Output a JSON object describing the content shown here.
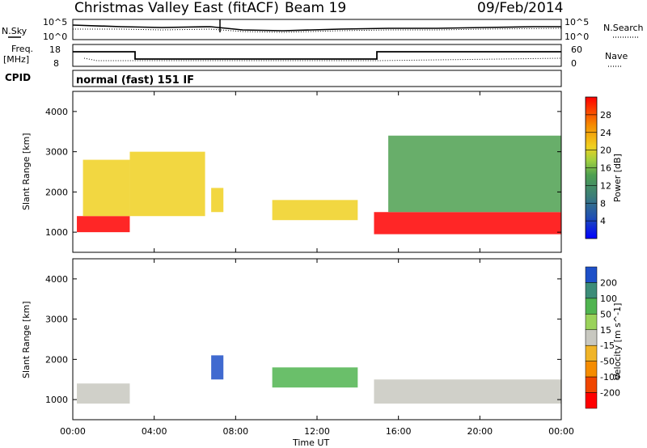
{
  "header": {
    "site": "Christmas Valley East (fitACF)",
    "beam": "Beam 19",
    "date": "09/Feb/2014"
  },
  "params": {
    "nsky_label": "N.Sky",
    "nsearch_label": "N.Search",
    "freq_label_1": "Freq.",
    "freq_label_2": "[MHz]",
    "nave_label": "Nave",
    "cpid_label": "CPID",
    "cpid_value": "normal (fast) 151 IF",
    "noise_ticks": [
      "10^5",
      "10^0"
    ],
    "freq_ticks": [
      "18",
      "8"
    ],
    "nave_ticks": [
      "60",
      "0"
    ]
  },
  "chart_data": [
    {
      "type": "heatmap",
      "title": "",
      "ylabel": "Slant Range [km]",
      "xlabel": "",
      "xlim": [
        "00:00",
        "24:00"
      ],
      "ylim": [
        500,
        4500
      ],
      "yticks": [
        "1000",
        "2000",
        "3000",
        "4000"
      ],
      "colorbar": {
        "label": "Power [dB]",
        "ticks": [
          "4",
          "8",
          "12",
          "16",
          "20",
          "24",
          "28"
        ],
        "colors": [
          "#0000ff",
          "#1e4ec8",
          "#3c7e78",
          "#4ea050",
          "#88c83c",
          "#f0d020",
          "#f5a000",
          "#f06000",
          "#ff0000"
        ]
      },
      "regions": [
        {
          "t": [
            0.2,
            2.8
          ],
          "r": [
            1000,
            1400
          ],
          "level": "high"
        },
        {
          "t": [
            0.5,
            2.8
          ],
          "r": [
            1400,
            2800
          ],
          "level": "mid"
        },
        {
          "t": [
            2.8,
            6.5
          ],
          "r": [
            1400,
            3000
          ],
          "level": "mid"
        },
        {
          "t": [
            6.8,
            7.4
          ],
          "r": [
            1500,
            2100
          ],
          "level": "mid"
        },
        {
          "t": [
            9.8,
            14.0
          ],
          "r": [
            1300,
            1800
          ],
          "level": "mid"
        },
        {
          "t": [
            14.8,
            24.0
          ],
          "r": [
            950,
            1500
          ],
          "level": "high"
        },
        {
          "t": [
            15.5,
            24.0
          ],
          "r": [
            1500,
            3400
          ],
          "level": "low"
        }
      ]
    },
    {
      "type": "heatmap",
      "title": "",
      "ylabel": "Slant Range [km]",
      "xlabel": "Time UT",
      "xlim": [
        "00:00",
        "24:00"
      ],
      "ylim": [
        500,
        4500
      ],
      "yticks": [
        "1000",
        "2000",
        "3000",
        "4000"
      ],
      "xticks": [
        "00:00",
        "04:00",
        "08:00",
        "12:00",
        "16:00",
        "20:00",
        "00:00"
      ],
      "colorbar": {
        "label": "Velocity [m s^-1]",
        "ticks": [
          "200",
          "100",
          "50",
          "15",
          "-15",
          "-50",
          "-100",
          "-200"
        ],
        "colors": [
          "#1e50c8",
          "#3c8c78",
          "#50b450",
          "#9ad25a",
          "#c8c8c0",
          "#f0b428",
          "#f58c00",
          "#f04600",
          "#ff0000"
        ]
      },
      "regions": [
        {
          "t": [
            0.2,
            2.8
          ],
          "r": [
            900,
            1400
          ],
          "level": "ground"
        },
        {
          "t": [
            6.8,
            7.4
          ],
          "r": [
            1500,
            2100
          ],
          "level": "positive"
        },
        {
          "t": [
            9.8,
            14.0
          ],
          "r": [
            1300,
            1800
          ],
          "level": "low-positive"
        },
        {
          "t": [
            14.8,
            24.0
          ],
          "r": [
            900,
            1500
          ],
          "level": "ground"
        }
      ]
    }
  ]
}
